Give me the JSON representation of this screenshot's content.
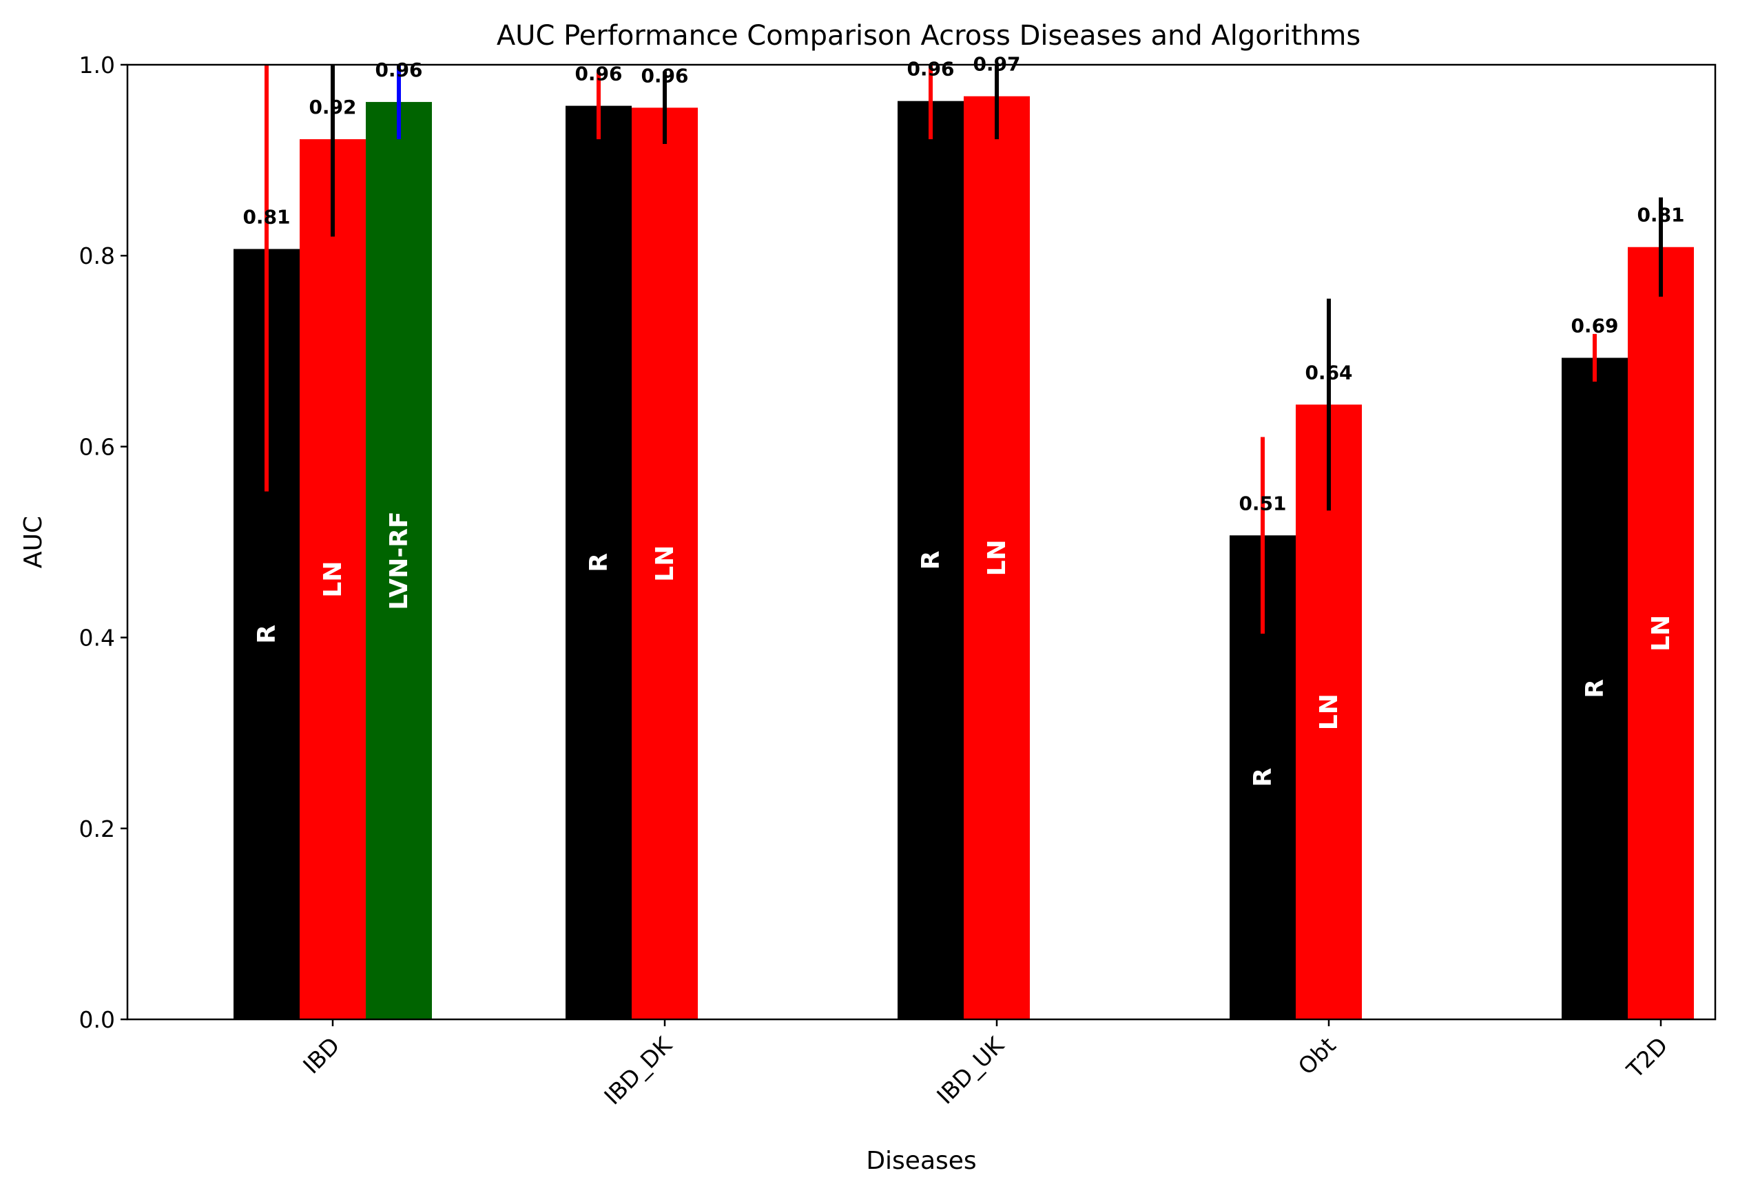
{
  "chart_data": {
    "type": "bar",
    "title": "AUC Performance Comparison Across Diseases and Algorithms",
    "xlabel": "Diseases",
    "ylabel": "AUC",
    "ylim": [
      0.0,
      1.0
    ],
    "yticks": [
      "0.0",
      "0.2",
      "0.4",
      "0.6",
      "0.8",
      "1.0"
    ],
    "categories": [
      "IBD",
      "IBD_DK",
      "IBD_UK",
      "Obt",
      "T2D"
    ],
    "grid": false,
    "legend": "none",
    "groups": [
      {
        "category": "IBD",
        "bars": [
          {
            "label": "R",
            "value": 0.807,
            "value_text": "0.81",
            "err_low": 0.553,
            "err_high": 1.0,
            "color": "#000000",
            "err_color": "#ff0000"
          },
          {
            "label": "LN",
            "value": 0.922,
            "value_text": "0.92",
            "err_low": 0.82,
            "err_high": 1.0,
            "color": "#ff0000",
            "err_color": "#000000"
          },
          {
            "label": "LVN-RF",
            "value": 0.961,
            "value_text": "0.96",
            "err_low": 0.922,
            "err_high": 1.0,
            "color": "#006400",
            "err_color": "#0000ff"
          }
        ]
      },
      {
        "category": "IBD_DK",
        "bars": [
          {
            "label": "R",
            "value": 0.957,
            "value_text": "0.96",
            "err_low": 0.922,
            "err_high": 0.992,
            "color": "#000000",
            "err_color": "#ff0000"
          },
          {
            "label": "LN",
            "value": 0.955,
            "value_text": "0.96",
            "err_low": 0.917,
            "err_high": 0.993,
            "color": "#ff0000",
            "err_color": "#000000"
          }
        ]
      },
      {
        "category": "IBD_UK",
        "bars": [
          {
            "label": "R",
            "value": 0.962,
            "value_text": "0.96",
            "err_low": 0.922,
            "err_high": 1.0,
            "color": "#000000",
            "err_color": "#ff0000"
          },
          {
            "label": "LN",
            "value": 0.967,
            "value_text": "0.97",
            "err_low": 0.922,
            "err_high": 1.0,
            "color": "#ff0000",
            "err_color": "#000000"
          }
        ]
      },
      {
        "category": "Obt",
        "bars": [
          {
            "label": "R",
            "value": 0.507,
            "value_text": "0.51",
            "err_low": 0.404,
            "err_high": 0.61,
            "color": "#000000",
            "err_color": "#ff0000"
          },
          {
            "label": "LN",
            "value": 0.644,
            "value_text": "0.64",
            "err_low": 0.533,
            "err_high": 0.755,
            "color": "#ff0000",
            "err_color": "#000000"
          }
        ]
      },
      {
        "category": "T2D",
        "bars": [
          {
            "label": "R",
            "value": 0.693,
            "value_text": "0.69",
            "err_low": 0.668,
            "err_high": 0.718,
            "color": "#000000",
            "err_color": "#ff0000"
          },
          {
            "label": "LN",
            "value": 0.809,
            "value_text": "0.81",
            "err_low": 0.757,
            "err_high": 0.861,
            "color": "#ff0000",
            "err_color": "#000000"
          }
        ]
      }
    ]
  }
}
